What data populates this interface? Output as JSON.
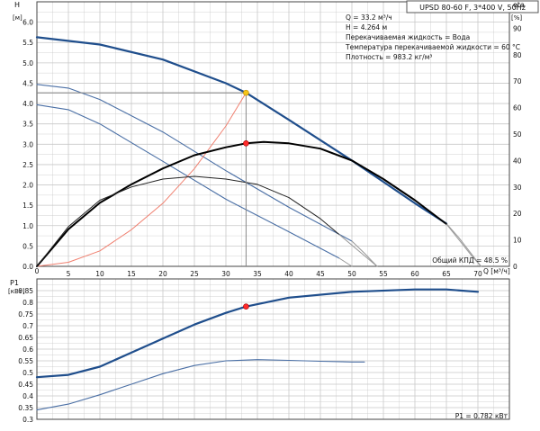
{
  "header": {
    "model": "UPSD 80-60 F, 3*400 V, 50Hz",
    "info_lines": [
      "Q = 33.2 м³/ч",
      "H = 4.264 м",
      "Перекачиваемая жидкость = Вода",
      "Температура перекачиваемой жидкости = 60 °C",
      "Плотность = 983.2 кг/м³"
    ]
  },
  "colors": {
    "pump_curve": "#1f4e8c",
    "speed_curves": "#4a6fa5",
    "efficiency_curve": "#000000",
    "system_curve": "#f08070",
    "grid": "#c8c8c8",
    "duty_point_top": "#f5c518",
    "duty_point": "#ff2a2a",
    "projection_line": "#888888"
  },
  "chart_data": [
    {
      "type": "line",
      "id": "head-efficiency",
      "xlabel": "Q [м³/ч]",
      "ylabel_left": "H",
      "ylabel_left_unit": "[м]",
      "ylabel_right": "eta",
      "ylabel_right_unit": "[%]",
      "xlim": [
        0,
        75
      ],
      "ylim_left": [
        0,
        6.5
      ],
      "ylim_right": [
        0,
        100
      ],
      "x_ticks": [
        5,
        10,
        15,
        20,
        25,
        30,
        35,
        40,
        45,
        50,
        55,
        60,
        65,
        70
      ],
      "y_ticks_left": [
        "0.0",
        "0.5",
        "1.0",
        "1.5",
        "2.0",
        "2.5",
        "3.0",
        "3.5",
        "4.0",
        "4.5",
        "5.0",
        "5.5",
        "6.0"
      ],
      "y_ticks_right": [
        0,
        10,
        20,
        30,
        40,
        50,
        60,
        70,
        80,
        90
      ],
      "x_axis_origin_label": "0",
      "annotation": "Общий КПД = 48.5 %",
      "series": [
        {
          "role": "head-max",
          "axis": "left",
          "x": [
            0,
            10,
            20,
            30,
            33.2,
            40,
            50,
            60,
            65
          ],
          "y": [
            5.63,
            5.45,
            5.08,
            4.5,
            4.264,
            3.6,
            2.6,
            1.55,
            1.05
          ]
        },
        {
          "role": "head-max-tail",
          "axis": "left",
          "x": [
            65,
            67,
            69,
            70.5
          ],
          "y": [
            1.05,
            0.7,
            0.3,
            0.0
          ]
        },
        {
          "role": "head-speed-2",
          "axis": "left",
          "x": [
            0,
            5,
            10,
            20,
            30,
            40,
            50
          ],
          "y": [
            4.47,
            4.38,
            4.1,
            3.3,
            2.35,
            1.45,
            0.62
          ]
        },
        {
          "role": "head-speed-2-tail",
          "axis": "left",
          "x": [
            50,
            52,
            54
          ],
          "y": [
            0.62,
            0.32,
            0.0
          ]
        },
        {
          "role": "head-speed-3",
          "axis": "left",
          "x": [
            0,
            5,
            10,
            20,
            30,
            40,
            48
          ],
          "y": [
            3.97,
            3.85,
            3.5,
            2.58,
            1.65,
            0.85,
            0.2
          ]
        },
        {
          "role": "head-speed-3-tail",
          "axis": "left",
          "x": [
            48,
            49,
            50
          ],
          "y": [
            0.2,
            0.1,
            0.0
          ]
        },
        {
          "role": "system-curve",
          "axis": "left",
          "x": [
            0,
            5,
            10,
            15,
            20,
            25,
            30,
            33.2
          ],
          "y": [
            0,
            0.1,
            0.38,
            0.9,
            1.55,
            2.4,
            3.45,
            4.264
          ]
        },
        {
          "role": "efficiency-max",
          "axis": "right",
          "x": [
            0,
            5,
            10,
            15,
            20,
            25,
            30,
            33.2,
            36,
            40,
            45,
            50,
            55,
            60,
            65
          ],
          "y": [
            0,
            14,
            24,
            31,
            37,
            42,
            45,
            46.5,
            47,
            46.5,
            44.5,
            40,
            33,
            25,
            16
          ]
        },
        {
          "role": "efficiency-max-tail",
          "axis": "right",
          "x": [
            65,
            67,
            69,
            70.5
          ],
          "y": [
            16,
            10,
            4,
            0
          ]
        },
        {
          "role": "efficiency-speed-2",
          "axis": "right",
          "x": [
            0,
            5,
            10,
            15,
            20,
            25,
            30,
            35,
            40,
            45,
            48
          ],
          "y": [
            0,
            15,
            25,
            30,
            33,
            34,
            33,
            31,
            26,
            18,
            12
          ]
        },
        {
          "role": "efficiency-speed-2-tail",
          "axis": "right",
          "x": [
            48,
            51,
            54
          ],
          "y": [
            12,
            6,
            0
          ]
        }
      ],
      "duty_point": {
        "x": 33.2,
        "head": 4.264,
        "efficiency": 46.5
      }
    },
    {
      "type": "line",
      "id": "power",
      "ylabel": "P1",
      "ylabel_unit": "[кВт]",
      "xlim": [
        0,
        75
      ],
      "ylim": [
        0.3,
        0.9
      ],
      "y_ticks": [
        "0.3",
        "0.35",
        "0.4",
        "0.45",
        "0.5",
        "0.55",
        "0.6",
        "0.65",
        "0.7",
        "0.75",
        "0.8",
        "0.85"
      ],
      "annotation": "P1 = 0.782 кВт",
      "series": [
        {
          "role": "power-max",
          "x": [
            0,
            5,
            10,
            15,
            20,
            25,
            30,
            33.2,
            40,
            50,
            60,
            65,
            70
          ],
          "y": [
            0.48,
            0.49,
            0.525,
            0.585,
            0.645,
            0.705,
            0.755,
            0.782,
            0.82,
            0.845,
            0.855,
            0.855,
            0.845
          ]
        },
        {
          "role": "power-speed-2",
          "x": [
            0,
            5,
            10,
            15,
            20,
            25,
            30,
            35,
            40,
            45,
            50,
            52
          ],
          "y": [
            0.34,
            0.365,
            0.405,
            0.45,
            0.495,
            0.53,
            0.55,
            0.555,
            0.552,
            0.548,
            0.545,
            0.545
          ]
        }
      ],
      "duty_point": {
        "x": 33.2,
        "y": 0.782
      }
    }
  ]
}
